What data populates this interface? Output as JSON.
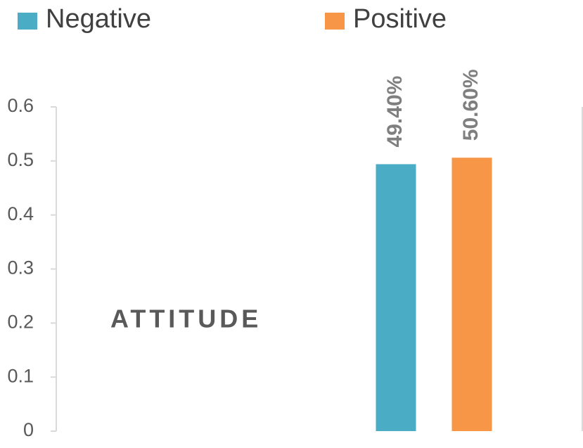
{
  "chart_data": {
    "type": "bar",
    "annotation": "ATTITUDE",
    "categories": [
      null
    ],
    "series": [
      {
        "name": "Negative",
        "color": "#4bacc6",
        "values": [
          0.494
        ],
        "value_labels": [
          "49.40%"
        ]
      },
      {
        "name": "Positive",
        "color": "#f79646",
        "values": [
          0.506
        ],
        "value_labels": [
          "50.60%"
        ]
      }
    ],
    "ylim": [
      0,
      0.6
    ],
    "yticks": [
      0,
      0.1,
      0.2,
      0.3,
      0.4,
      0.5,
      0.6
    ],
    "legend": "top"
  }
}
